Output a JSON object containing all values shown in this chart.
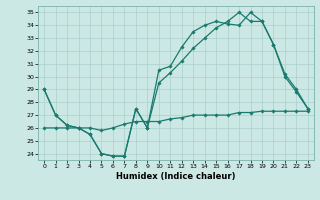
{
  "xlabel": "Humidex (Indice chaleur)",
  "bg_color": "#cce8e4",
  "line_color": "#1a7a6e",
  "grid_color": "#aad0cc",
  "ylim": [
    23.5,
    35.5
  ],
  "xlim": [
    -0.5,
    23.5
  ],
  "yticks": [
    24,
    25,
    26,
    27,
    28,
    29,
    30,
    31,
    32,
    33,
    34,
    35
  ],
  "xticks": [
    0,
    1,
    2,
    3,
    4,
    5,
    6,
    7,
    8,
    9,
    10,
    11,
    12,
    13,
    14,
    15,
    16,
    17,
    18,
    19,
    20,
    21,
    22,
    23
  ],
  "line1_x": [
    0,
    1,
    2,
    3,
    4,
    5,
    6,
    7,
    8,
    9,
    10,
    11,
    12,
    13,
    14,
    15,
    16,
    17,
    18,
    19,
    20,
    21,
    22,
    23
  ],
  "line1_y": [
    29,
    27,
    26.2,
    26,
    25.5,
    24,
    23.8,
    23.8,
    27.5,
    26,
    30.5,
    30.8,
    32.3,
    33.5,
    34,
    34.3,
    34.1,
    34,
    35,
    34.3,
    32.5,
    30,
    28.8,
    27.5
  ],
  "line2_x": [
    0,
    1,
    2,
    3,
    4,
    5,
    6,
    7,
    8,
    9,
    10,
    11,
    12,
    13,
    14,
    15,
    16,
    17,
    18,
    19,
    20,
    21,
    22,
    23
  ],
  "line2_y": [
    29,
    27,
    26.2,
    26,
    25.5,
    24,
    23.8,
    23.8,
    27.5,
    26,
    29.5,
    30.3,
    31.2,
    32.2,
    33,
    33.8,
    34.3,
    35,
    34.3,
    34.3,
    32.5,
    30.2,
    29,
    27.5
  ],
  "line3_x": [
    0,
    1,
    2,
    3,
    4,
    5,
    6,
    7,
    8,
    9,
    10,
    11,
    12,
    13,
    14,
    15,
    16,
    17,
    18,
    19,
    20,
    21,
    22,
    23
  ],
  "line3_y": [
    26,
    26,
    26,
    26,
    26,
    25.8,
    26,
    26.3,
    26.5,
    26.5,
    26.5,
    26.7,
    26.8,
    27,
    27,
    27,
    27,
    27.2,
    27.2,
    27.3,
    27.3,
    27.3,
    27.3,
    27.3
  ]
}
